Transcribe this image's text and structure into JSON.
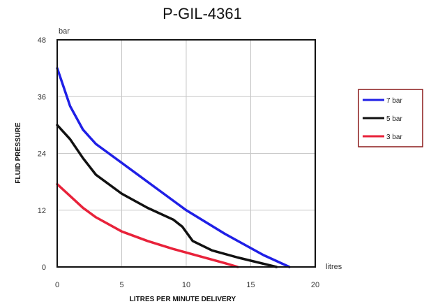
{
  "chart_data": {
    "type": "line",
    "title": "P-GIL-4361",
    "ylabel": "FLUID PRESSURE",
    "xlabel": "LITRES PER MINUTE DELIVERY",
    "y_unit": "bar",
    "x_unit": "litres",
    "xlim": [
      0,
      20
    ],
    "ylim": [
      0,
      48
    ],
    "x_ticks": [
      "0",
      "5",
      "10",
      "15",
      "20"
    ],
    "y_ticks": [
      "0",
      "12",
      "24",
      "36",
      "48"
    ],
    "grid": true,
    "legend_position": "right",
    "series": [
      {
        "name": "7 bar",
        "color": "#1f1fe6",
        "x": [
          0,
          0.5,
          1,
          2,
          3,
          5,
          7,
          10,
          13,
          16,
          18
        ],
        "y": [
          42,
          38,
          34,
          29,
          26,
          22,
          18,
          12,
          7,
          2.5,
          0
        ]
      },
      {
        "name": "5 bar",
        "color": "#111111",
        "x": [
          0,
          1,
          2,
          3,
          5,
          7,
          9,
          9.7,
          10.5,
          12,
          14,
          17
        ],
        "y": [
          30,
          27,
          23,
          19.5,
          15.5,
          12.5,
          10,
          8.5,
          5.5,
          3.5,
          2,
          0
        ]
      },
      {
        "name": "3 bar",
        "color": "#e8223a",
        "x": [
          0,
          1,
          2,
          3,
          5,
          7,
          9,
          11,
          13,
          14
        ],
        "y": [
          17.5,
          15,
          12.5,
          10.5,
          7.5,
          5.5,
          3.8,
          2.3,
          0.8,
          0
        ]
      }
    ]
  }
}
